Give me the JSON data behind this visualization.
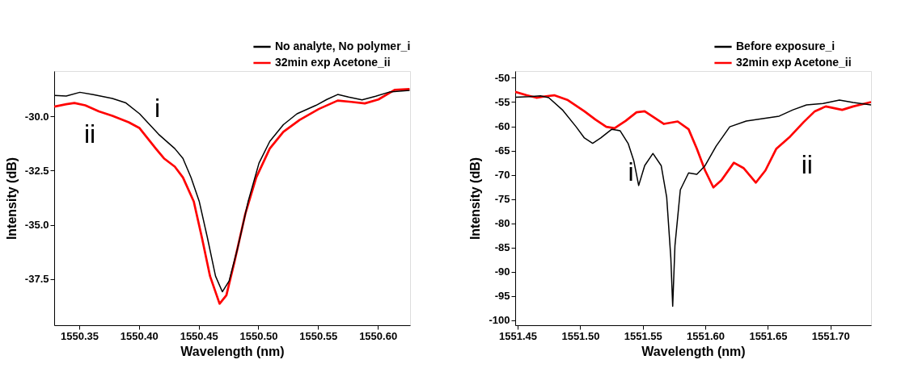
{
  "chart_data": [
    {
      "type": "line",
      "xlabel": "Wavelength (nm)",
      "ylabel": "Intensity (dB)",
      "legend": "top right",
      "xlim": [
        1550.329,
        1550.627
      ],
      "ylim": [
        -39.62,
        -27.92
      ],
      "xticks": [
        {
          "value": 1550.35,
          "label": "1550.35"
        },
        {
          "value": 1550.4,
          "label": "1550.40"
        },
        {
          "value": 1550.45,
          "label": "1550.45"
        },
        {
          "value": 1550.5,
          "label": "1550.50"
        },
        {
          "value": 1550.55,
          "label": "1550.55"
        },
        {
          "value": 1550.6,
          "label": "1550.60"
        }
      ],
      "yticks": [
        {
          "value": -30,
          "label": "-30.0"
        },
        {
          "value": -32.5,
          "label": "-32.5"
        },
        {
          "value": -35,
          "label": "-35.0"
        },
        {
          "value": -37.5,
          "label": "-37.5"
        }
      ],
      "series": [
        {
          "name": "No analyte, No polymer_i",
          "color": "#000000",
          "x": [
            1550.3291,
            1550.3391,
            1550.3505,
            1550.3618,
            1550.3777,
            1550.3891,
            1550.4005,
            1550.4164,
            1550.43,
            1550.4368,
            1550.4436,
            1550.4505,
            1550.4573,
            1550.4641,
            1550.4698,
            1550.4755,
            1550.4823,
            1550.4914,
            1550.5005,
            1550.5095,
            1550.5209,
            1550.5323,
            1550.5482,
            1550.5573,
            1550.5664,
            1550.5755,
            1550.5868,
            1550.5982,
            1550.6095,
            1550.6266
          ],
          "values": [
            -29.04,
            -29.07,
            -28.9,
            -29.01,
            -29.18,
            -29.39,
            -29.89,
            -30.83,
            -31.49,
            -31.94,
            -32.82,
            -33.93,
            -35.59,
            -37.36,
            -38.08,
            -37.58,
            -36.14,
            -33.93,
            -32.16,
            -31.16,
            -30.39,
            -29.89,
            -29.5,
            -29.23,
            -29.0,
            -29.12,
            -29.25,
            -29.08,
            -28.89,
            -28.81
          ]
        },
        {
          "name": "32min exp Acetone_ii",
          "color": "#ff0000",
          "x": [
            1550.3291,
            1550.3391,
            1550.3459,
            1550.355,
            1550.3664,
            1550.3777,
            1550.3914,
            1550.4005,
            1550.4141,
            1550.4209,
            1550.43,
            1550.4368,
            1550.4459,
            1550.4527,
            1550.4595,
            1550.4675,
            1550.4732,
            1550.48,
            1550.4891,
            1550.4982,
            1550.5095,
            1550.5209,
            1550.5345,
            1550.5505,
            1550.5664,
            1550.5777,
            1550.5891,
            1550.6005,
            1550.6141,
            1550.6266
          ],
          "values": [
            -29.56,
            -29.45,
            -29.39,
            -29.5,
            -29.78,
            -29.98,
            -30.28,
            -30.55,
            -31.49,
            -31.94,
            -32.32,
            -32.82,
            -33.93,
            -35.59,
            -37.36,
            -38.63,
            -38.24,
            -36.69,
            -34.48,
            -32.82,
            -31.49,
            -30.72,
            -30.17,
            -29.67,
            -29.28,
            -29.34,
            -29.41,
            -29.23,
            -28.79,
            -28.75
          ]
        }
      ],
      "annotations": [
        "i",
        "ii"
      ]
    },
    {
      "type": "line",
      "xlabel": "Wavelength (nm)",
      "ylabel": "Intensity (dB)",
      "legend": "top right",
      "xlim": [
        1551.448,
        1551.7325
      ],
      "ylim": [
        -101,
        -48.6
      ],
      "xticks": [
        {
          "value": 1551.45,
          "label": "1551.45"
        },
        {
          "value": 1551.5,
          "label": "1551.50"
        },
        {
          "value": 1551.55,
          "label": "1551.55"
        },
        {
          "value": 1551.6,
          "label": "1551.60"
        },
        {
          "value": 1551.65,
          "label": "1551.65"
        },
        {
          "value": 1551.7,
          "label": "1551.70"
        }
      ],
      "yticks": [
        -50,
        -55,
        -60,
        -65,
        -70,
        -75,
        -80,
        -85,
        -90,
        -95,
        -100
      ],
      "series": [
        {
          "name": "Before exposure_i",
          "color": "#000000",
          "x": [
            1551.448,
            1551.4594,
            1551.4682,
            1551.4748,
            1551.4857,
            1551.4967,
            1551.5033,
            1551.5099,
            1551.5164,
            1551.5252,
            1551.5318,
            1551.5384,
            1551.5428,
            1551.5467,
            1551.5515,
            1551.5581,
            1551.5647,
            1551.5691,
            1551.5724,
            1551.5739,
            1551.5757,
            1551.58,
            1551.5866,
            1551.5932,
            1551.5998,
            1551.6086,
            1551.6195,
            1551.6327,
            1551.6458,
            1551.659,
            1551.67,
            1551.6809,
            1551.6941,
            1551.7072,
            1551.7182,
            1551.7325
          ],
          "values": [
            -54.0,
            -53.9,
            -53.7,
            -54.1,
            -56.6,
            -60.1,
            -62.4,
            -63.5,
            -62.4,
            -60.6,
            -60.9,
            -63.6,
            -67.1,
            -72.2,
            -68.1,
            -65.6,
            -68.1,
            -74.6,
            -87.1,
            -97.1,
            -84.6,
            -73.1,
            -69.6,
            -69.9,
            -68.1,
            -64.1,
            -60.1,
            -58.9,
            -58.4,
            -57.9,
            -56.6,
            -55.6,
            -55.3,
            -54.6,
            -55.1,
            -55.6
          ]
        },
        {
          "name": "32min exp Acetone_ii",
          "color": "#ff0000",
          "x": [
            1551.448,
            1551.4572,
            1551.4649,
            1551.4726,
            1551.4792,
            1551.4901,
            1551.5033,
            1551.5121,
            1551.5208,
            1551.5274,
            1551.5362,
            1551.545,
            1551.5515,
            1551.5603,
            1551.5669,
            1551.5779,
            1551.5866,
            1551.5932,
            1551.5998,
            1551.6064,
            1551.6129,
            1551.6228,
            1551.6305,
            1551.6404,
            1551.648,
            1551.6568,
            1551.6678,
            1551.6787,
            1551.6875,
            1551.6963,
            1551.7094,
            1551.7182,
            1551.7325
          ],
          "values": [
            -52.9,
            -53.6,
            -54.1,
            -53.8,
            -53.6,
            -54.6,
            -56.9,
            -58.6,
            -60.1,
            -60.4,
            -58.9,
            -57.1,
            -56.9,
            -58.4,
            -59.5,
            -59.0,
            -60.6,
            -64.6,
            -69.1,
            -72.6,
            -71.1,
            -67.5,
            -68.6,
            -71.6,
            -69.1,
            -64.6,
            -62.1,
            -59.1,
            -56.9,
            -55.9,
            -56.6,
            -55.9,
            -55.0
          ]
        }
      ],
      "annotations": [
        "i",
        "ii"
      ]
    }
  ]
}
